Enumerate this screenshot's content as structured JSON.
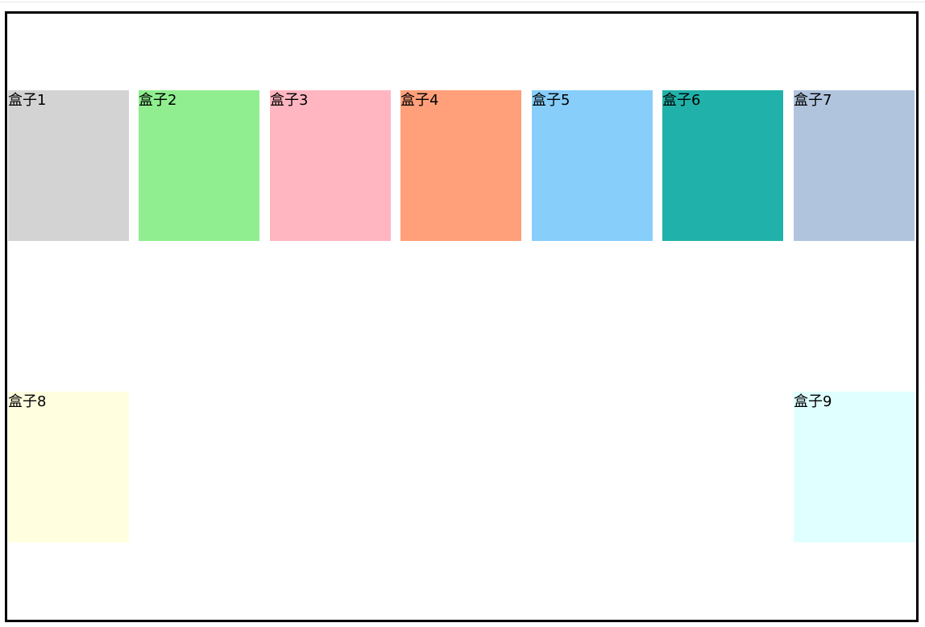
{
  "boxes": [
    {
      "label": "盒子1",
      "color": "#d3d3d3"
    },
    {
      "label": "盒子2",
      "color": "#90ee90"
    },
    {
      "label": "盒子3",
      "color": "#ffb6c1"
    },
    {
      "label": "盒子4",
      "color": "#ffa07a"
    },
    {
      "label": "盒子5",
      "color": "#87cefa"
    },
    {
      "label": "盒子6",
      "color": "#20b2aa"
    },
    {
      "label": "盒子7",
      "color": "#b0c4de"
    },
    {
      "label": "盒子8",
      "color": "#ffffe0"
    },
    {
      "label": "盒子9",
      "color": "#e0ffff"
    }
  ]
}
